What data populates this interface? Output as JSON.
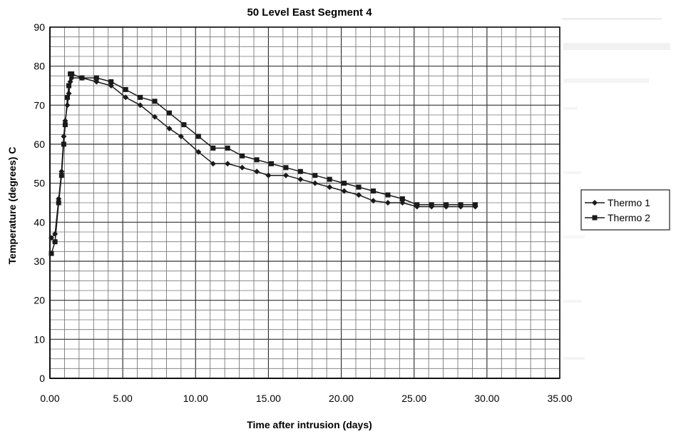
{
  "chart_data": {
    "type": "line",
    "title": "50 Level East Segment 4",
    "xlabel": "Time after intrusion (days)",
    "ylabel": "Temperature (degrees) C",
    "xlim": [
      0,
      35
    ],
    "ylim": [
      0,
      90
    ],
    "x_ticks": [
      "0.00",
      "5.00",
      "10.00",
      "15.00",
      "20.00",
      "25.00",
      "30.00",
      "35.00"
    ],
    "y_ticks": [
      "0",
      "10",
      "20",
      "30",
      "40",
      "50",
      "60",
      "70",
      "80",
      "90"
    ],
    "grid": true,
    "legend": "right",
    "series": [
      {
        "name": "Thermo 1",
        "marker": "diamond",
        "color": "#1a1a1a",
        "x": [
          0.1,
          0.35,
          0.6,
          0.8,
          0.95,
          1.05,
          1.2,
          1.3,
          1.4,
          1.5,
          2.2,
          3.2,
          4.2,
          5.2,
          6.2,
          7.2,
          8.2,
          9.0,
          10.2,
          11.2,
          12.2,
          13.2,
          14.2,
          15.0,
          16.2,
          17.2,
          18.2,
          19.2,
          20.2,
          21.2,
          22.2,
          23.2,
          24.2,
          25.2,
          26.2,
          27.2,
          28.2,
          29.2
        ],
        "y": [
          36,
          37,
          46,
          53,
          62,
          66,
          70,
          73,
          76,
          77,
          77,
          76,
          75,
          72,
          70,
          67,
          64,
          62,
          58,
          55,
          55,
          54,
          53,
          52,
          52,
          51,
          50,
          49,
          48,
          47,
          45.5,
          45,
          45,
          44,
          44,
          44,
          44,
          44
        ]
      },
      {
        "name": "Thermo 2",
        "marker": "square",
        "color": "#1a1a1a",
        "x": [
          0.1,
          0.35,
          0.6,
          0.8,
          0.95,
          1.05,
          1.2,
          1.3,
          1.4,
          1.5,
          2.2,
          3.2,
          4.2,
          5.2,
          6.2,
          7.2,
          8.2,
          9.2,
          10.2,
          11.2,
          12.2,
          13.2,
          14.2,
          15.2,
          16.2,
          17.2,
          18.2,
          19.2,
          20.2,
          21.2,
          22.2,
          23.2,
          24.2,
          25.2,
          26.2,
          27.2,
          28.2,
          29.2
        ],
        "y": [
          32,
          35,
          45,
          52,
          60,
          65,
          72,
          75,
          78,
          78,
          77,
          77,
          76,
          74,
          72,
          71,
          68,
          65,
          62,
          59,
          59,
          57,
          56,
          55,
          54,
          53,
          52,
          51,
          50,
          49,
          48,
          47,
          46,
          44.5,
          44.5,
          44.5,
          44.5,
          44.5
        ]
      }
    ]
  }
}
